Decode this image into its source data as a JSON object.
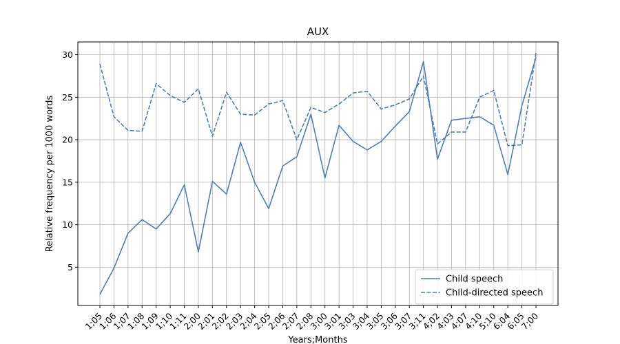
{
  "chart_data": {
    "type": "line",
    "title": "AUX",
    "xlabel": "Years;Months",
    "ylabel": "Relative frequency per 1000 words",
    "categories": [
      "1;05",
      "1;06",
      "1;07",
      "1;08",
      "1;09",
      "1;10",
      "1;11",
      "2;00",
      "2;01",
      "2;02",
      "2;03",
      "2;04",
      "2;05",
      "2;06",
      "2;07",
      "2;08",
      "3;00",
      "3;01",
      "3;03",
      "3;04",
      "3;05",
      "3;06",
      "3;07",
      "3;11",
      "4;02",
      "4;03",
      "4;07",
      "4;10",
      "5;10",
      "6;04",
      "6;05",
      "7;00"
    ],
    "yticks": [
      5,
      10,
      15,
      20,
      25,
      30
    ],
    "ylim": [
      0.5,
      31.5
    ],
    "grid": true,
    "legend_position": "lower-right",
    "series": [
      {
        "name": "Child speech",
        "style": "solid",
        "color": "#4f7db3",
        "values": [
          1.8,
          4.9,
          9.0,
          10.6,
          9.5,
          11.3,
          14.7,
          6.8,
          15.1,
          13.6,
          19.7,
          15.0,
          11.9,
          16.9,
          18.0,
          23.0,
          15.5,
          21.7,
          19.8,
          18.8,
          19.8,
          21.6,
          23.3,
          29.2,
          17.7,
          22.3,
          22.5,
          22.7,
          21.7,
          15.9,
          24.0,
          29.7
        ]
      },
      {
        "name": "Child-directed speech",
        "style": "dashed",
        "color": "#4f7db3",
        "values": [
          28.9,
          22.7,
          21.1,
          21.0,
          26.6,
          25.2,
          24.4,
          26.0,
          20.4,
          25.6,
          23.0,
          22.9,
          24.2,
          24.6,
          20.0,
          23.8,
          23.2,
          24.2,
          25.5,
          25.7,
          23.6,
          24.1,
          24.8,
          27.5,
          19.5,
          20.9,
          20.9,
          25.0,
          25.8,
          19.3,
          19.4,
          30.2
        ]
      }
    ]
  }
}
